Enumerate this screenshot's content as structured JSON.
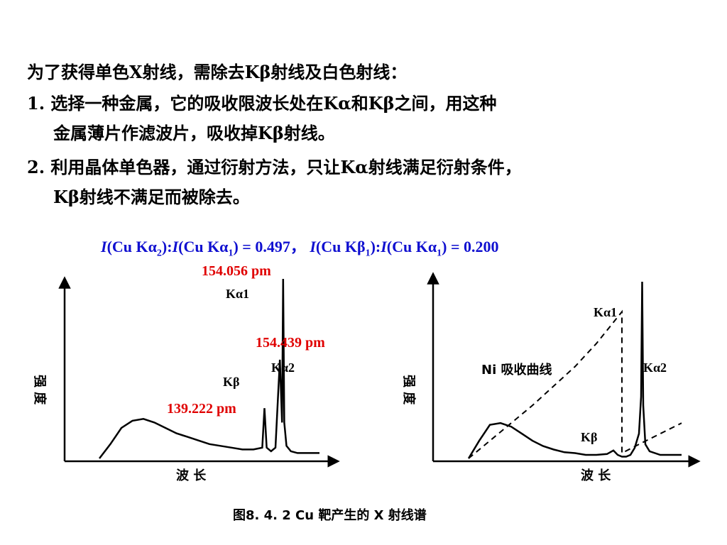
{
  "text": {
    "line1": "为了获得单色X射线，需除去Kβ射线及白色射线：",
    "line2": "1. 选择一种金属，它的吸收限波长处在Kα和Kβ之间，用这种",
    "line3": "金属薄片作滤波片，吸收掉Kβ射线。",
    "line4": "2. 利用晶体单色器，通过衍射方法，只让Kα射线满足衍射条件，",
    "line5": "Kβ射线不满足而被除去。"
  },
  "formula": {
    "ratio1_value": "= 0.497，",
    "ratio2_value": "= 0.200"
  },
  "chart_data": [
    {
      "type": "line",
      "title": "",
      "xlabel": "波 长",
      "ylabel": "强 度",
      "series": [
        {
          "x": [
            0.0,
            0.05,
            0.1,
            0.15,
            0.2,
            0.25,
            0.3,
            0.35,
            0.4,
            0.45,
            0.5,
            0.55,
            0.6,
            0.65,
            0.7,
            0.74,
            0.75,
            0.76,
            0.78,
            0.8,
            0.82,
            0.83,
            0.835,
            0.84,
            0.85,
            0.87,
            0.9,
            0.95,
            1.0
          ],
          "values": [
            0.0,
            0.08,
            0.17,
            0.21,
            0.22,
            0.2,
            0.17,
            0.14,
            0.12,
            0.1,
            0.08,
            0.07,
            0.06,
            0.05,
            0.05,
            0.06,
            0.28,
            0.06,
            0.04,
            0.06,
            0.55,
            0.2,
            1.0,
            0.2,
            0.07,
            0.04,
            0.03,
            0.03,
            0.03
          ]
        }
      ],
      "annotations": [
        {
          "text": "Kα1",
          "peak": "Kα1"
        },
        {
          "text": "Kα2",
          "peak": "Kα2"
        },
        {
          "text": "Kβ",
          "peak": "Kβ"
        },
        {
          "text": "154.056 pm",
          "peak": "Kα1"
        },
        {
          "text": "154.439 pm",
          "peak": "Kα2"
        },
        {
          "text": "139.222 pm",
          "peak": "Kβ"
        }
      ]
    },
    {
      "type": "line",
      "title": "",
      "xlabel": "波 长",
      "ylabel": "强 度",
      "series": [
        {
          "x": [
            0.0,
            0.05,
            0.1,
            0.15,
            0.2,
            0.25,
            0.3,
            0.35,
            0.4,
            0.45,
            0.5,
            0.55,
            0.6,
            0.65,
            0.68,
            0.7,
            0.72,
            0.74,
            0.76,
            0.78,
            0.8,
            0.81,
            0.815,
            0.82,
            0.83,
            0.85,
            0.9,
            0.95,
            1.0
          ],
          "values": [
            0.0,
            0.1,
            0.19,
            0.2,
            0.18,
            0.14,
            0.1,
            0.07,
            0.05,
            0.035,
            0.03,
            0.02,
            0.02,
            0.025,
            0.045,
            0.02,
            0.01,
            0.01,
            0.02,
            0.06,
            0.14,
            0.35,
            1.0,
            0.3,
            0.08,
            0.04,
            0.02,
            0.02,
            0.02
          ]
        },
        {
          "x": [
            0.0,
            0.1,
            0.2,
            0.3,
            0.4,
            0.5,
            0.6,
            0.7,
            0.72,
            0.72,
            0.8,
            0.9,
            1.0
          ],
          "values": [
            0.0,
            0.1,
            0.2,
            0.3,
            0.41,
            0.52,
            0.65,
            0.8,
            0.83,
            0.03,
            0.08,
            0.14,
            0.2
          ]
        }
      ],
      "annotations": [
        {
          "text": "Kα1",
          "peak": "Kα1"
        },
        {
          "text": "Kα2",
          "peak": "Kα2"
        },
        {
          "text": "Kβ",
          "peak": "Kβ"
        },
        {
          "text": "Ni 吸收曲线",
          "series": 1
        }
      ]
    }
  ],
  "caption": "图8. 4. 2   Cu 靶产生的 X 射线谱"
}
